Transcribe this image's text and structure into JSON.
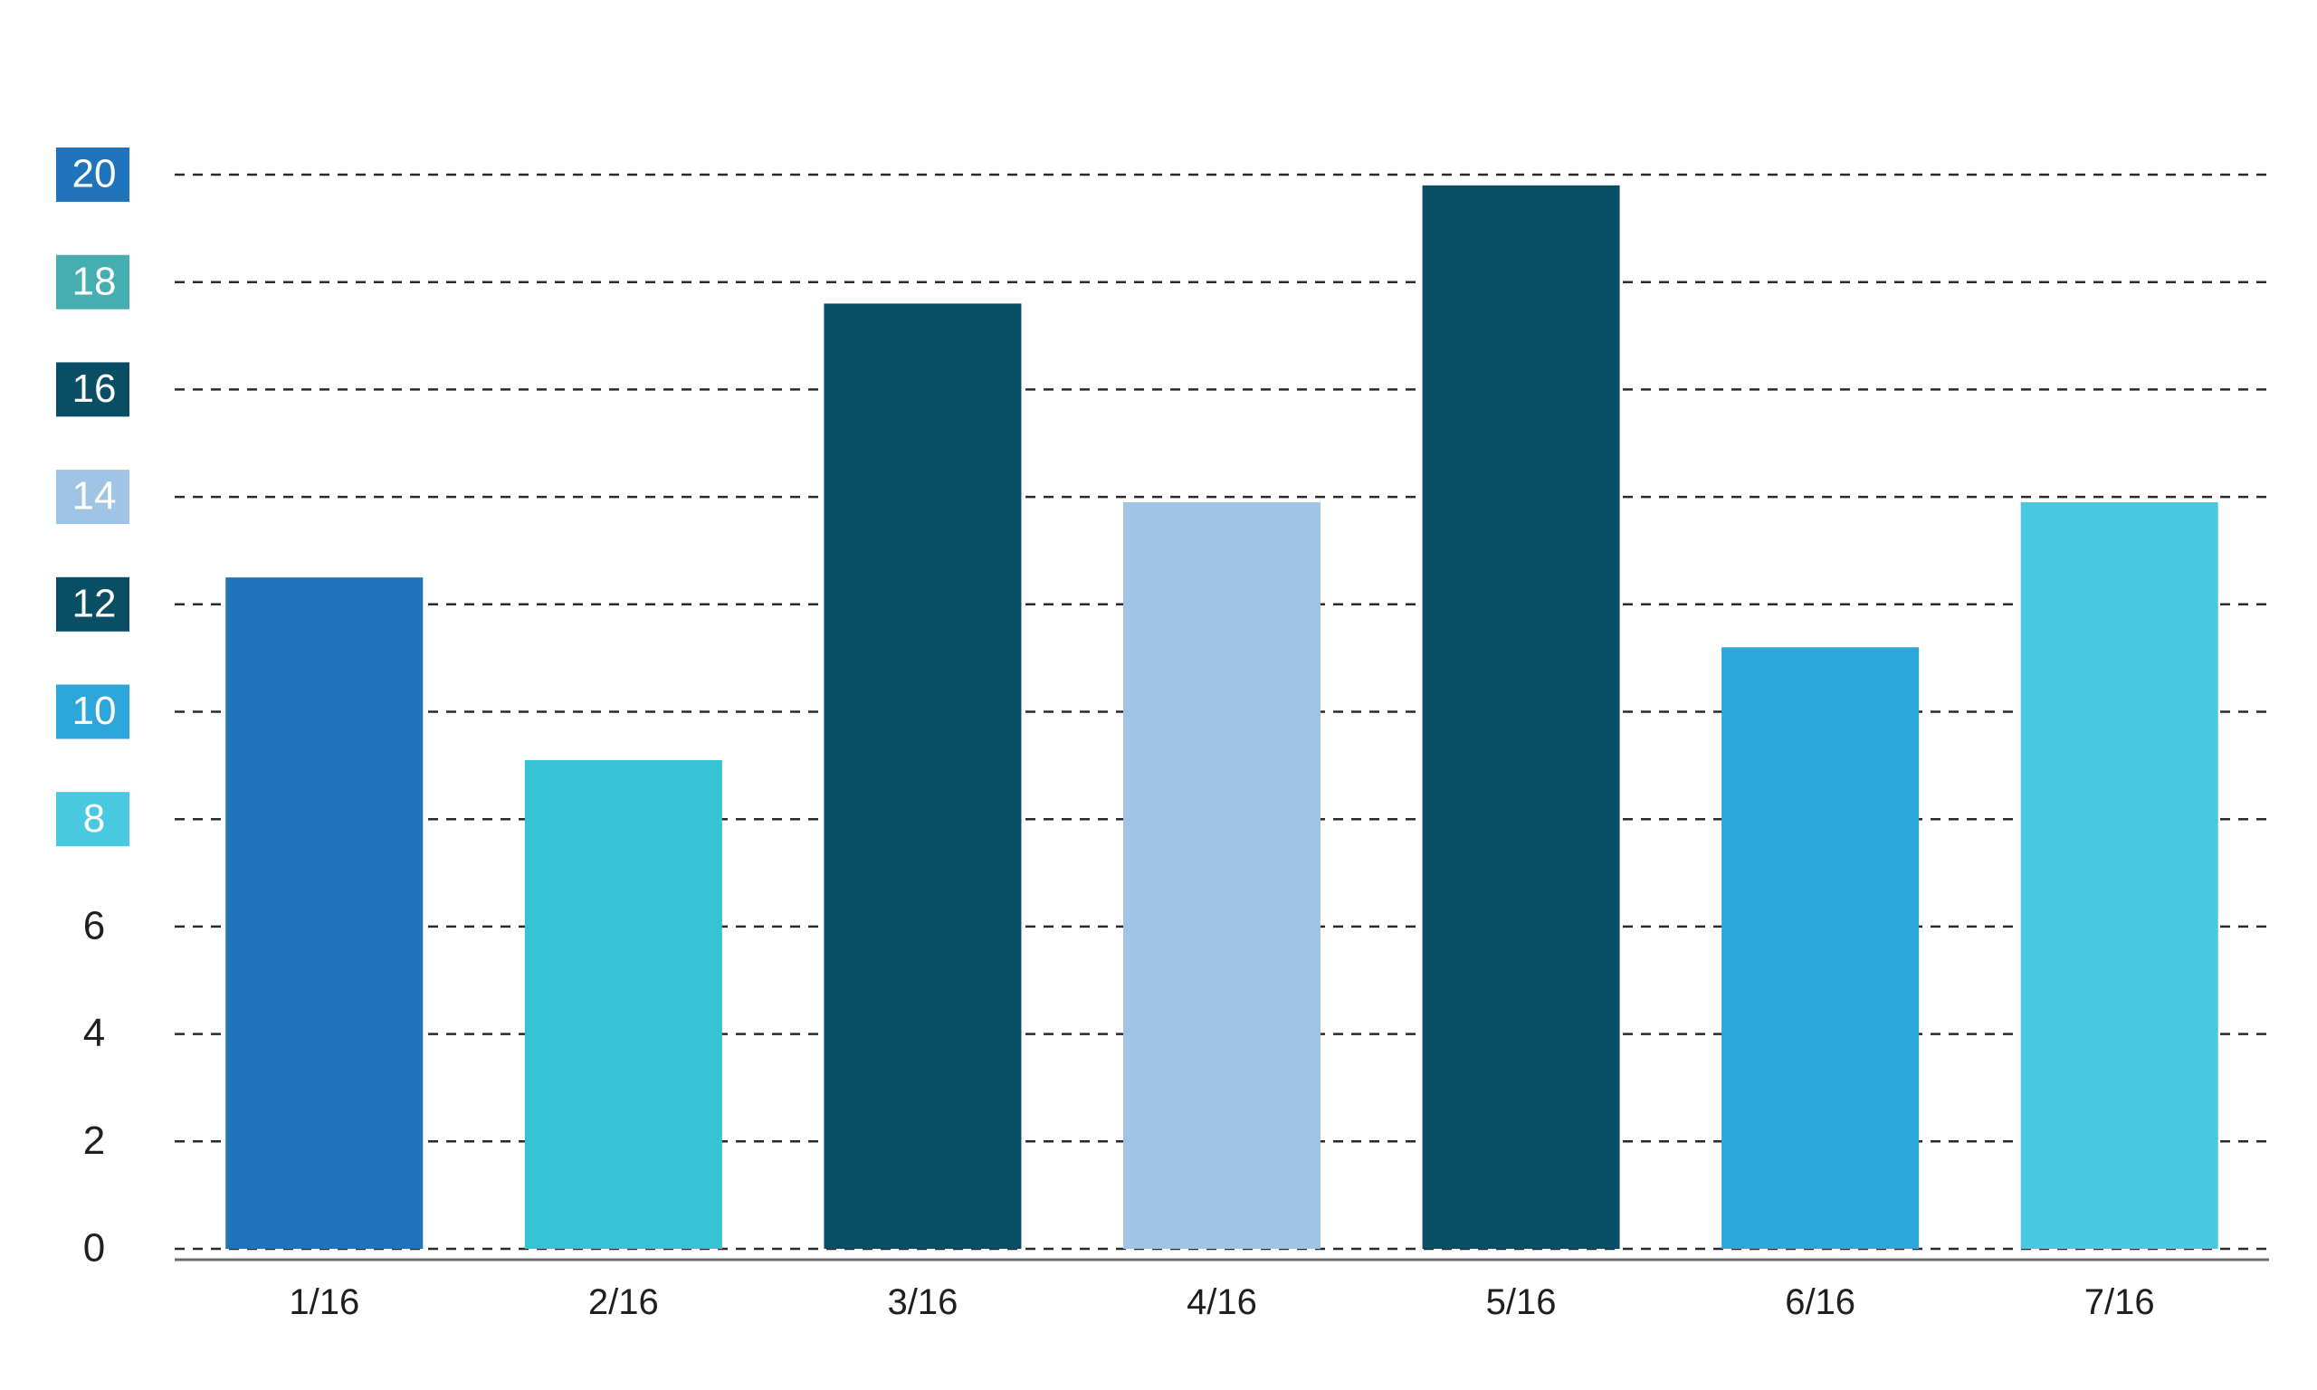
{
  "chart_data": {
    "type": "bar",
    "title": "",
    "xlabel": "",
    "ylabel": "",
    "categories": [
      "1/16",
      "2/16",
      "3/16",
      "4/16",
      "5/16",
      "6/16",
      "7/16"
    ],
    "values": [
      12.5,
      9.1,
      17.6,
      13.9,
      19.8,
      11.2,
      13.9
    ],
    "bar_colors": [
      "#2074bb",
      "#37c3d6",
      "#0a4e66",
      "#a0c5e4",
      "#0a4e66",
      "#2da6dc",
      "#48c9e0"
    ],
    "ylim": [
      0,
      20
    ],
    "yticks": [
      {
        "label": "0",
        "value": 0,
        "badge": null
      },
      {
        "label": "2",
        "value": 2,
        "badge": null
      },
      {
        "label": "4",
        "value": 4,
        "badge": null
      },
      {
        "label": "6",
        "value": 6,
        "badge": null
      },
      {
        "label": "8",
        "value": 8,
        "badge": "#48c9e0"
      },
      {
        "label": "10",
        "value": 10,
        "badge": "#2da6dc"
      },
      {
        "label": "12",
        "value": 12,
        "badge": "#0a4e66"
      },
      {
        "label": "14",
        "value": 14,
        "badge": "#a0c5e4"
      },
      {
        "label": "16",
        "value": 16,
        "badge": "#0a4e66"
      },
      {
        "label": "18",
        "value": 18,
        "badge": "#45aeb0"
      },
      {
        "label": "20",
        "value": 20,
        "badge": "#2074bb"
      }
    ],
    "grid": true,
    "legend": "none"
  }
}
